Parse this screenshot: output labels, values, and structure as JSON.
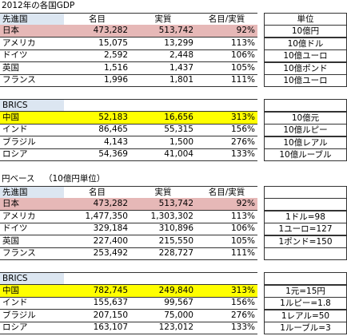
{
  "title": "2012年の各国GDP",
  "tables": [
    {
      "header": [
        "先進国",
        "名目",
        "実質",
        "名目/実質",
        "単位"
      ],
      "rows": [
        [
          "日本",
          "473,282",
          "513,742",
          "92%",
          "10億円"
        ],
        [
          "アメリカ",
          "15,075",
          "13,299",
          "113%",
          "10億ドル"
        ],
        [
          "ドイツ",
          "2,592",
          "2,448",
          "106%",
          "10億ユーロ"
        ],
        [
          "英国",
          "1,516",
          "1,437",
          "105%",
          "10億ポンド"
        ],
        [
          "フランス",
          "1,996",
          "1,801",
          "111%",
          "10億ユーロ"
        ]
      ]
    },
    {
      "header": [
        "BRICS"
      ],
      "rows": [
        [
          "中国",
          "52,183",
          "16,656",
          "313%",
          "10億元"
        ],
        [
          "インド",
          "86,465",
          "55,315",
          "156%",
          "10億ルピー"
        ],
        [
          "ブラジル",
          "4,143",
          "1,500",
          "276%",
          "10億レアル"
        ],
        [
          "ロシア",
          "54,369",
          "41,004",
          "133%",
          "10億ルーブル"
        ]
      ]
    }
  ],
  "yen": {
    "title": "円ベース",
    "note": "（10億円単位）",
    "tables": [
      {
        "header": [
          "先進国",
          "名目",
          "実質",
          "名目/実質"
        ],
        "rows": [
          {
            "cells": [
              "日本",
              "473,282",
              "513,742",
              "92%"
            ]
          },
          {
            "cells": [
              "アメリカ",
              "1,477,350",
              "1,303,302",
              "113%"
            ],
            "rate": "1ドル=98"
          },
          {
            "cells": [
              "ドイツ",
              "329,184",
              "310,896",
              "106%"
            ],
            "rate": "1ユーロ=127"
          },
          {
            "cells": [
              "英国",
              "227,400",
              "215,550",
              "105%"
            ],
            "rate": "1ポンド=150"
          },
          {
            "cells": [
              "フランス",
              "253,492",
              "228,727",
              "111%"
            ]
          }
        ]
      },
      {
        "header": [
          "BRICS"
        ],
        "rows": [
          {
            "cells": [
              "中国",
              "782,745",
              "249,840",
              "313%"
            ],
            "rate": "1元=15円"
          },
          {
            "cells": [
              "インド",
              "155,637",
              "99,567",
              "156%"
            ],
            "rate": "1ルピー=1.8"
          },
          {
            "cells": [
              "ブラジル",
              "207,150",
              "75,000",
              "276%"
            ],
            "rate": "1レアル=50"
          },
          {
            "cells": [
              "ロシア",
              "163,107",
              "123,012",
              "133%"
            ],
            "rate": "1ルーブル=3"
          }
        ]
      }
    ]
  }
}
